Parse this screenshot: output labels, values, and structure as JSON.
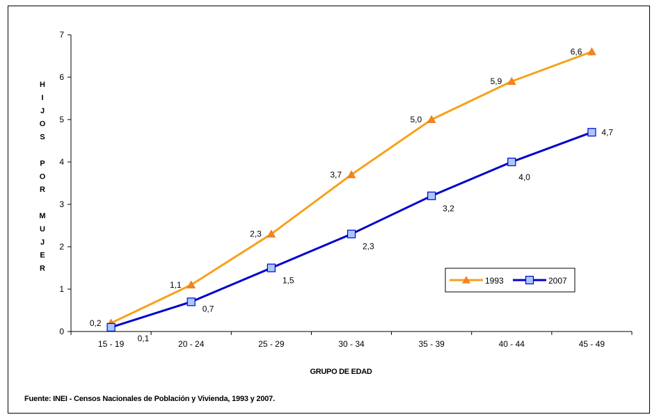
{
  "chart_data": {
    "type": "line",
    "categories": [
      "15 - 19",
      "20 - 24",
      "25 - 29",
      "30 - 34",
      "35 - 39",
      "40 - 44",
      "45 - 49"
    ],
    "series": [
      {
        "name": "1993",
        "color": "#f7a11a",
        "marker": "triangle",
        "values": [
          0.2,
          1.1,
          2.3,
          3.7,
          5.0,
          5.9,
          6.6
        ],
        "labels": [
          "0,2",
          "1,1",
          "2,3",
          "3,7",
          "5,0",
          "5,9",
          "6,6"
        ]
      },
      {
        "name": "2007",
        "color": "#0000cc",
        "marker": "square",
        "values": [
          0.1,
          0.7,
          1.5,
          2.3,
          3.2,
          4.0,
          4.7
        ],
        "labels": [
          "0,1",
          "0,7",
          "1,5",
          "2,3",
          "3,2",
          "4,0",
          "4,7"
        ]
      }
    ],
    "ylim": [
      0,
      7
    ],
    "yticks": [
      0,
      1,
      2,
      3,
      4,
      5,
      6,
      7
    ],
    "ylabel": "H I J O S   P O R   M U J E R",
    "xlabel": "GRUPO DE EDAD",
    "grid": false,
    "legend": "inside right, lower-middle"
  },
  "ylabel_lines": [
    "H",
    "I",
    "J",
    "O",
    "S",
    "",
    "P",
    "O",
    "R",
    "",
    "M",
    "U",
    "J",
    "E",
    "R"
  ],
  "source": "Fuente: INEI - Censos Nacionales de Población y Vivienda, 1993 y 2007."
}
